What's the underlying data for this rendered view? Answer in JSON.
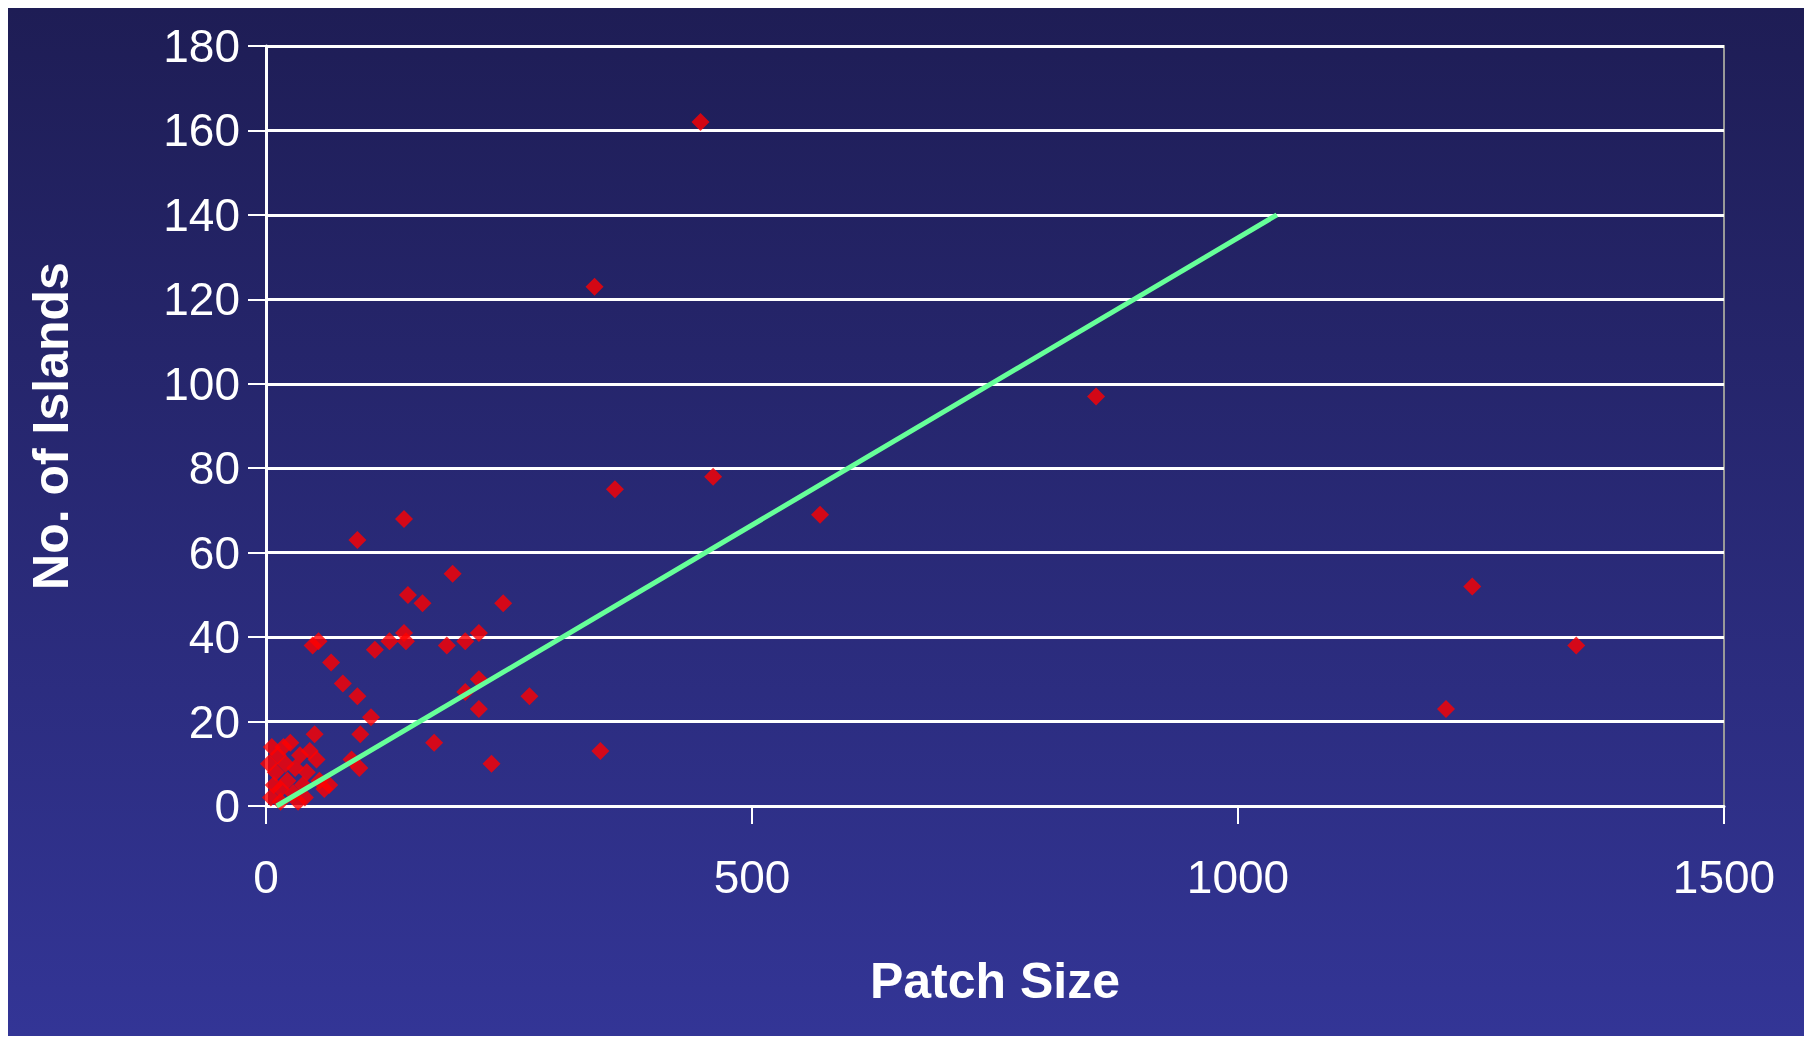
{
  "chart_data": {
    "type": "scatter",
    "xlabel": "Patch Size",
    "ylabel": "No. of Islands",
    "xlim": [
      0,
      1500
    ],
    "xticks": [
      0,
      500,
      1000,
      1500
    ],
    "ylim": [
      0,
      180
    ],
    "yticks": [
      0,
      20,
      40,
      60,
      80,
      100,
      120,
      140,
      160,
      180
    ],
    "grid": "y",
    "marker": "diamond",
    "series": [
      {
        "color": "#ff0000",
        "x": [
          447,
          338,
          854,
          460,
          359,
          570,
          1241,
          1348,
          1214,
          142,
          94,
          192,
          146,
          161,
          244,
          142,
          144,
          219,
          205,
          186,
          127,
          48,
          54,
          112,
          67,
          79,
          94,
          271,
          219,
          205,
          219,
          108,
          97,
          173,
          344,
          232,
          96,
          88,
          5,
          8,
          10,
          12,
          15,
          18,
          20,
          22,
          25,
          28,
          30,
          35,
          38,
          40,
          42,
          45,
          50,
          52,
          55,
          60,
          65,
          3,
          6,
          15,
          33
        ],
        "values": [
          162,
          123,
          97,
          78,
          75,
          69,
          52,
          38,
          23,
          68,
          63,
          55,
          50,
          48,
          48,
          41,
          39,
          41,
          39,
          38,
          39,
          38,
          39,
          37,
          34,
          29,
          26,
          26,
          30,
          27,
          23,
          21,
          17,
          15,
          13,
          10,
          9,
          11,
          2,
          5,
          8,
          12,
          4,
          14,
          10,
          6,
          15,
          3,
          9,
          12,
          5,
          2,
          8,
          13,
          17,
          11,
          6,
          4,
          5,
          10,
          14,
          1,
          1
        ]
      },
      {
        "type": "line",
        "color": "#66ff99",
        "marker": "none",
        "x": [
          11,
          1040
        ],
        "values": [
          0,
          140
        ]
      }
    ]
  }
}
